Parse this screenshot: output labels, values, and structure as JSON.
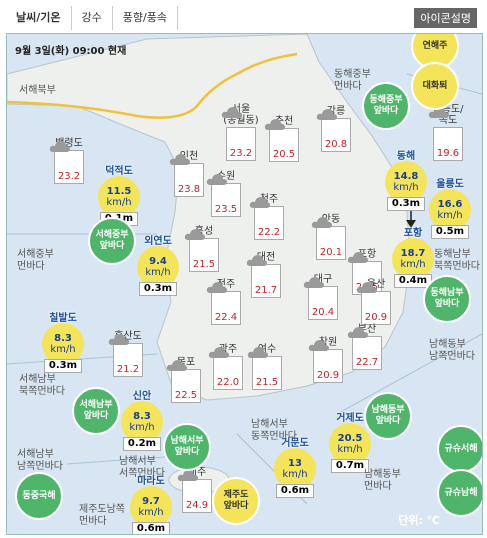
{
  "header": {
    "tabs": [
      "날씨/기온",
      "강수",
      "풍향/풍속"
    ],
    "button": "아이콘설명",
    "timestamp": "9월 3일(화) 09:00 현재"
  },
  "unit": "단위: ℃",
  "wind_unit": "km/h",
  "land_stations": [
    {
      "name": "백령도",
      "temp": "23.2"
    },
    {
      "name": "인천",
      "temp": "23.8"
    },
    {
      "name": "서울(송월동)",
      "temp": "23.2"
    },
    {
      "name": "춘천",
      "temp": "20.5"
    },
    {
      "name": "강릉",
      "temp": "20.8"
    },
    {
      "name": "수원",
      "temp": "23.5"
    },
    {
      "name": "청주",
      "temp": "22.2"
    },
    {
      "name": "홍성",
      "temp": "21.5"
    },
    {
      "name": "안동",
      "temp": "20.1"
    },
    {
      "name": "대전",
      "temp": "21.7"
    },
    {
      "name": "포항",
      "temp": "21.5"
    },
    {
      "name": "전주",
      "temp": "22.4"
    },
    {
      "name": "대구",
      "temp": "20.4"
    },
    {
      "name": "울산",
      "temp": "20.9"
    },
    {
      "name": "흑산도",
      "temp": "21.2"
    },
    {
      "name": "광주",
      "temp": "22.0"
    },
    {
      "name": "여수",
      "temp": "21.5"
    },
    {
      "name": "부산",
      "temp": "22.7"
    },
    {
      "name": "목포",
      "temp": "22.5"
    },
    {
      "name": "창원",
      "temp": "20.9"
    },
    {
      "name": "울릉도/독도",
      "temp": "19.6"
    },
    {
      "name": "제주",
      "temp": "24.9"
    }
  ],
  "buoys": [
    {
      "name": "덕적도",
      "wind": "11.5",
      "wave": "0.1m"
    },
    {
      "name": "외연도",
      "wind": "9.4",
      "wave": "0.3m"
    },
    {
      "name": "칠발도",
      "wind": "8.3",
      "wave": "0.3m"
    },
    {
      "name": "신안",
      "wind": "8.3",
      "wave": "0.2m"
    },
    {
      "name": "마라도",
      "wind": "9.7",
      "wave": "0.6m"
    },
    {
      "name": "거문도",
      "wind": "13",
      "wave": "0.6m"
    },
    {
      "name": "거제도",
      "wind": "20.5",
      "wave": "0.7m"
    },
    {
      "name": "동해",
      "wind": "14.8",
      "wave": "0.3m"
    },
    {
      "name": "울릉도",
      "wind": "16.6",
      "wave": "0.5m"
    },
    {
      "name": "포항",
      "wind": "18.7",
      "wave": "0.4m"
    }
  ],
  "sea_regions": [
    "서해북부",
    "서해중부 먼바다",
    "서해남부 북쪽먼바다",
    "서해남부 남쪽먼바다",
    "동해중부 먼바다",
    "동해남부 북쪽먼바다",
    "남해동부 남쪽먼바다",
    "남해서부 동쪽먼바다",
    "남해동부 먼바다",
    "남해서부 서쪽먼바다",
    "제주도남쪽 먼바다"
  ],
  "badges": [
    {
      "text": "연해주",
      "color": "yellow"
    },
    {
      "text": "대화퇴",
      "color": "yellow"
    },
    {
      "text": "동해중부 앞바다",
      "color": "green"
    },
    {
      "text": "동해남부 앞바다",
      "color": "green"
    },
    {
      "text": "서해중부 앞바다",
      "color": "green"
    },
    {
      "text": "서해남부 앞바다",
      "color": "green"
    },
    {
      "text": "남해서부 앞바다",
      "color": "green"
    },
    {
      "text": "남해동부 앞바다",
      "color": "green"
    },
    {
      "text": "동중국해",
      "color": "green"
    },
    {
      "text": "규슈서해",
      "color": "green"
    },
    {
      "text": "규슈남해",
      "color": "green"
    },
    {
      "text": "제주도 앞바다",
      "color": "yellow"
    }
  ]
}
